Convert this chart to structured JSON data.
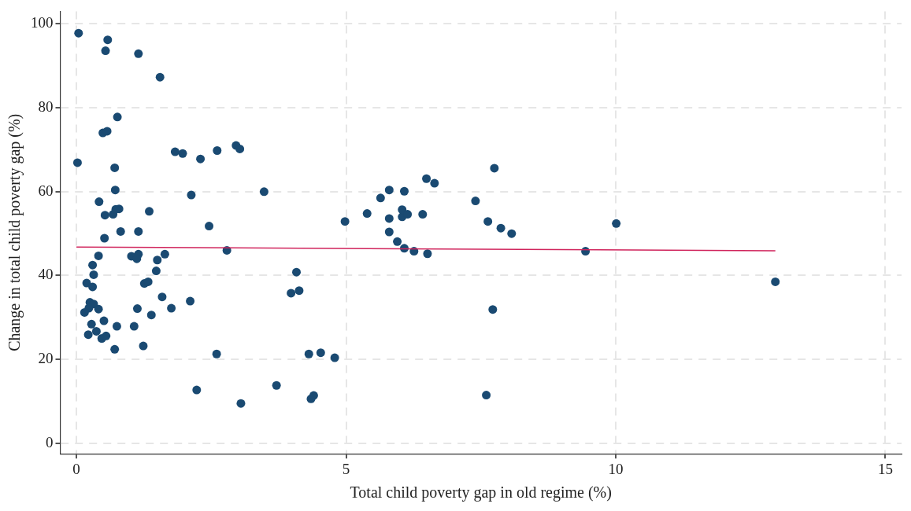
{
  "chart_data": {
    "type": "scatter",
    "xlabel": "Total child poverty gap in old regime (%)",
    "ylabel": "Change in total child poverty gap (%)",
    "xlim": [
      -0.3,
      15.3
    ],
    "ylim": [
      -2.5,
      103
    ],
    "xticks": [
      0,
      5,
      10,
      15
    ],
    "yticks": [
      0,
      20,
      40,
      60,
      80,
      100
    ],
    "grid": true,
    "legend": false,
    "marker": "circle",
    "series": [
      {
        "color": "#1a4a72",
        "x": [
          0.04,
          0.58,
          0.54,
          1.15,
          1.55,
          0.76,
          0.49,
          0.57,
          1.83,
          1.97,
          2.3,
          2.61,
          0.02,
          0.71,
          0.72,
          2.13,
          0.42,
          0.53,
          0.68,
          0.79,
          0.73,
          1.35,
          2.46,
          0.82,
          1.15,
          0.52,
          0.41,
          1.02,
          1.15,
          1.12,
          1.64,
          1.5,
          1.48,
          0.3,
          0.32,
          0.19,
          0.3,
          1.26,
          1.33,
          1.59,
          2.11,
          0.25,
          0.32,
          0.23,
          0.15,
          0.41,
          1.13,
          1.76,
          1.39,
          0.28,
          0.51,
          0.75,
          1.07,
          0.37,
          0.22,
          0.47,
          0.55,
          0.71,
          1.24,
          2.6,
          2.23,
          2.96,
          3.03,
          3.48,
          4.98,
          5.39,
          2.79,
          4.08,
          3.98,
          4.13,
          3.71,
          3.05,
          4.31,
          4.53,
          4.79,
          4.35,
          4.4,
          5.64,
          5.8,
          5.8,
          5.8,
          5.95,
          6.04,
          6.04,
          6.08,
          6.14,
          6.08,
          6.26,
          6.42,
          6.49,
          6.64,
          6.51,
          7.4,
          7.63,
          7.75,
          7.87,
          8.07,
          7.72,
          7.6,
          9.44,
          10.01,
          12.96
        ],
        "values": [
          97.8,
          96.2,
          93.6,
          92.9,
          87.3,
          77.8,
          74.0,
          74.4,
          69.5,
          69.1,
          67.8,
          69.8,
          66.9,
          65.7,
          60.4,
          59.2,
          57.6,
          54.4,
          54.6,
          55.9,
          55.8,
          55.3,
          51.8,
          50.5,
          50.5,
          48.9,
          44.7,
          44.6,
          45.1,
          44.0,
          45.1,
          43.7,
          41.1,
          42.5,
          40.2,
          38.2,
          37.3,
          38.1,
          38.5,
          34.9,
          33.9,
          33.6,
          33.2,
          32.2,
          31.2,
          32.0,
          32.1,
          32.2,
          30.6,
          28.4,
          29.2,
          27.9,
          27.9,
          26.7,
          25.9,
          25.0,
          25.6,
          22.4,
          23.2,
          21.3,
          12.7,
          71.0,
          70.2,
          60.0,
          52.9,
          54.8,
          46.0,
          40.8,
          35.8,
          36.4,
          13.8,
          9.5,
          21.3,
          21.6,
          20.4,
          10.6,
          11.4,
          58.5,
          60.4,
          53.6,
          50.4,
          48.1,
          54.0,
          55.7,
          60.1,
          54.6,
          46.5,
          45.8,
          54.6,
          63.1,
          62.0,
          45.2,
          57.8,
          52.9,
          65.6,
          51.3,
          50.0,
          31.9,
          11.5,
          45.8,
          52.4,
          38.5
        ]
      },
      {
        "type": "line",
        "color": "#d0245c",
        "marker": "none",
        "x": [
          0,
          12.96
        ],
        "values": [
          46.8,
          45.9
        ]
      }
    ]
  }
}
